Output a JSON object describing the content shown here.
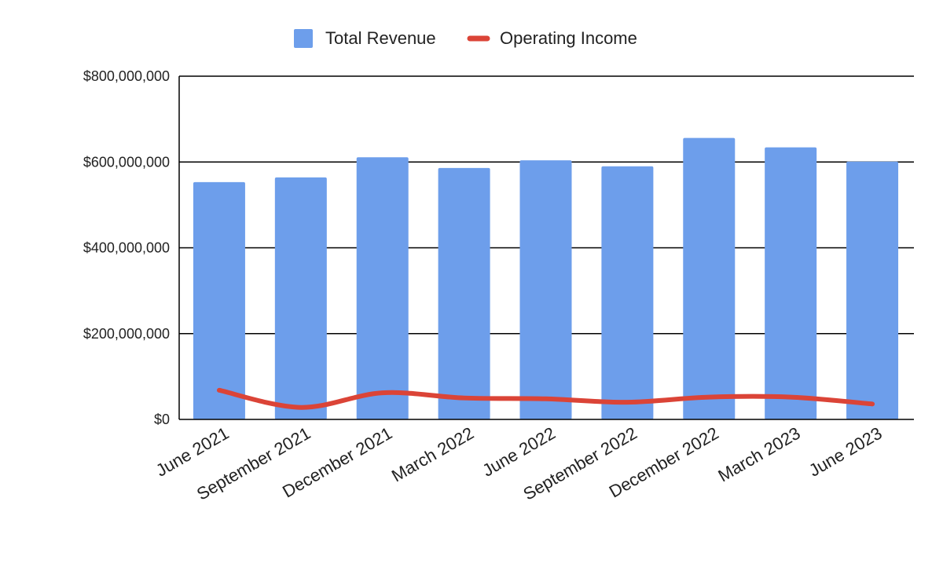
{
  "chart_data": {
    "type": "bar",
    "categories": [
      "June 2021",
      "September 2021",
      "December 2021",
      "March 2022",
      "June 2022",
      "September 2022",
      "December 2022",
      "March 2023",
      "June 2023"
    ],
    "series": [
      {
        "name": "Total Revenue",
        "type": "bar",
        "color": "#6d9eeb",
        "values": [
          553000000,
          564000000,
          611000000,
          586000000,
          604000000,
          590000000,
          656000000,
          634000000,
          601000000
        ]
      },
      {
        "name": "Operating Income",
        "type": "line",
        "smooth": true,
        "color": "#db4437",
        "values": [
          68000000,
          28000000,
          62000000,
          50000000,
          48000000,
          40000000,
          52000000,
          52000000,
          36000000
        ]
      }
    ],
    "yticks": [
      "$0",
      "$200,000,000",
      "$400,000,000",
      "$600,000,000",
      "$800,000,000"
    ],
    "ylim": [
      0,
      800000000
    ],
    "grid": true,
    "legend_position": "top-center",
    "title": "",
    "xlabel": "",
    "ylabel": ""
  }
}
